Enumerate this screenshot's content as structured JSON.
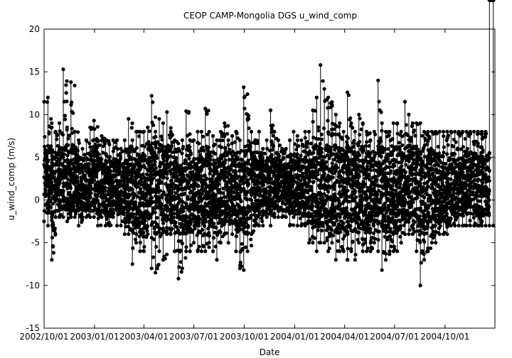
{
  "chart_data": {
    "type": "scatter",
    "title": "CEOP CAMP-Mongolia DGS  u_wind_comp",
    "xlabel": "Date",
    "ylabel": "u_wind_comp (m/s)",
    "ylim": [
      -15,
      20
    ],
    "yticks": [
      -15,
      -10,
      -5,
      0,
      5,
      10,
      15,
      20
    ],
    "xlim": [
      "2002-10-01",
      "2004-12-31"
    ],
    "xticks": [
      {
        "date": "2002-10-01",
        "label": "2002/10/01"
      },
      {
        "date": "2003-01-01",
        "label": "2003/01/01"
      },
      {
        "date": "2003-04-01",
        "label": "2003/04/01"
      },
      {
        "date": "2003-07-01",
        "label": "2003/07/01"
      },
      {
        "date": "2003-10-01",
        "label": "2003/10/01"
      },
      {
        "date": "2004-01-01",
        "label": "2004/01/01"
      },
      {
        "date": "2004-04-01",
        "label": "2004/04/01"
      },
      {
        "date": "2004-07-01",
        "label": "2004/07/01"
      },
      {
        "date": "2004-10-01",
        "label": "2004/10/01"
      }
    ],
    "grid": false,
    "series": [
      {
        "color": "#000000",
        "x": [
          "2002-10-01",
          "2002-10-08",
          "2002-10-15",
          "2002-10-22",
          "2002-10-29",
          "2002-11-05",
          "2002-11-12",
          "2002-11-19",
          "2002-11-26",
          "2002-12-03",
          "2002-12-10",
          "2002-12-17",
          "2002-12-24",
          "2002-12-31",
          "2003-01-07",
          "2003-01-14",
          "2003-01-21",
          "2003-01-28",
          "2003-02-04",
          "2003-02-11",
          "2003-02-18",
          "2003-02-25",
          "2003-03-04",
          "2003-03-11",
          "2003-03-18",
          "2003-03-25",
          "2003-04-01",
          "2003-04-08",
          "2003-04-15",
          "2003-04-22",
          "2003-04-29",
          "2003-05-06",
          "2003-05-13",
          "2003-05-20",
          "2003-05-27",
          "2003-06-03",
          "2003-06-10",
          "2003-06-17",
          "2003-06-24",
          "2003-07-01",
          "2003-07-08",
          "2003-07-15",
          "2003-07-22",
          "2003-07-29",
          "2003-08-05",
          "2003-08-12",
          "2003-08-19",
          "2003-08-26",
          "2003-09-02",
          "2003-09-09",
          "2003-09-16",
          "2003-09-23",
          "2003-09-30",
          "2003-10-07",
          "2003-10-14",
          "2003-10-21",
          "2003-10-28",
          "2003-11-04",
          "2003-11-11",
          "2003-11-18",
          "2003-11-25",
          "2003-12-02",
          "2003-12-09",
          "2003-12-16",
          "2003-12-23",
          "2003-12-30",
          "2004-01-06",
          "2004-01-13",
          "2004-01-20",
          "2004-01-27",
          "2004-02-03",
          "2004-02-10",
          "2004-02-17",
          "2004-02-24",
          "2004-03-02",
          "2004-03-09",
          "2004-03-16",
          "2004-03-23",
          "2004-03-30",
          "2004-04-06",
          "2004-04-13",
          "2004-04-20",
          "2004-04-27",
          "2004-05-04",
          "2004-05-11",
          "2004-05-18",
          "2004-05-25",
          "2004-06-01",
          "2004-06-08",
          "2004-06-15",
          "2004-06-22",
          "2004-06-29",
          "2004-07-06",
          "2004-07-13",
          "2004-07-20",
          "2004-07-27",
          "2004-08-03",
          "2004-08-10",
          "2004-08-17",
          "2004-08-24",
          "2004-08-31",
          "2004-09-07",
          "2004-09-14",
          "2004-09-21",
          "2004-09-28",
          "2004-10-05",
          "2004-10-12",
          "2004-10-19",
          "2004-10-26",
          "2004-11-02",
          "2004-11-09",
          "2004-11-16",
          "2004-11-23",
          "2004-11-30",
          "2004-12-07",
          "2004-12-14",
          "2004-12-21",
          "2004-12-28"
        ],
        "y_max": [
          11.5,
          12,
          8.5,
          8,
          9,
          15.3,
          8.5,
          13.8,
          8,
          7,
          6,
          7,
          8.5,
          9.3,
          7,
          7.5,
          7,
          6.5,
          7,
          7,
          6,
          7,
          9.5,
          7,
          8,
          8,
          8,
          8.5,
          12.2,
          8,
          9.5,
          9,
          10.3,
          8,
          7,
          6,
          7,
          10.4,
          7,
          7,
          8,
          8,
          10.7,
          8,
          7.5,
          7,
          8,
          9,
          7,
          7.5,
          8,
          7,
          13.2,
          10,
          8,
          7,
          8,
          6,
          7,
          10.5,
          8,
          7,
          6,
          6,
          7,
          8,
          7,
          7,
          8,
          8,
          10.5,
          12,
          15.8,
          13,
          12,
          11,
          10,
          9,
          8,
          12.6,
          9,
          8,
          10,
          9,
          8,
          7,
          8,
          14,
          9,
          8,
          8,
          9,
          9,
          8,
          11.5,
          10,
          9,
          9,
          9,
          8,
          8,
          8,
          8,
          8,
          8,
          8,
          8,
          8,
          8,
          8,
          8,
          8,
          8,
          8,
          8,
          8
        ],
        "y_min": [
          -2.5,
          -3,
          -7,
          -2,
          -2,
          -2,
          -2.5,
          -2,
          -2,
          -3,
          -2,
          -2,
          -2,
          -2,
          -3,
          -2,
          -3,
          -3,
          -2,
          -3,
          -3,
          -4,
          -4,
          -7.5,
          -5,
          -6,
          -6,
          -4,
          -8,
          -8.5,
          -6,
          -7,
          -4,
          -4,
          -6,
          -9.2,
          -8,
          -6,
          -6,
          -5,
          -6,
          -6,
          -6,
          -5,
          -6,
          -7,
          -5,
          -4,
          -5,
          -4,
          -6,
          -8,
          -8.2,
          -6,
          -4,
          -3,
          -3,
          -3,
          -2,
          -3,
          -2,
          -2,
          -2,
          -2,
          -3,
          -2,
          -3,
          -3,
          -3,
          -5,
          -5,
          -6,
          -5,
          -5,
          -6,
          -5,
          -7,
          -6,
          -6,
          -7,
          -6,
          -7,
          -5,
          -6,
          -6,
          -6,
          -5,
          -6,
          -8.2,
          -7,
          -6,
          -6,
          -6,
          -5,
          -4,
          -4,
          -4,
          -6,
          -10,
          -7,
          -6,
          -5,
          -5,
          -4,
          -4,
          -4,
          -3,
          -3,
          -3,
          -3,
          -3,
          -3,
          -3,
          -3,
          -3,
          -3,
          -3,
          -3
        ]
      }
    ]
  }
}
